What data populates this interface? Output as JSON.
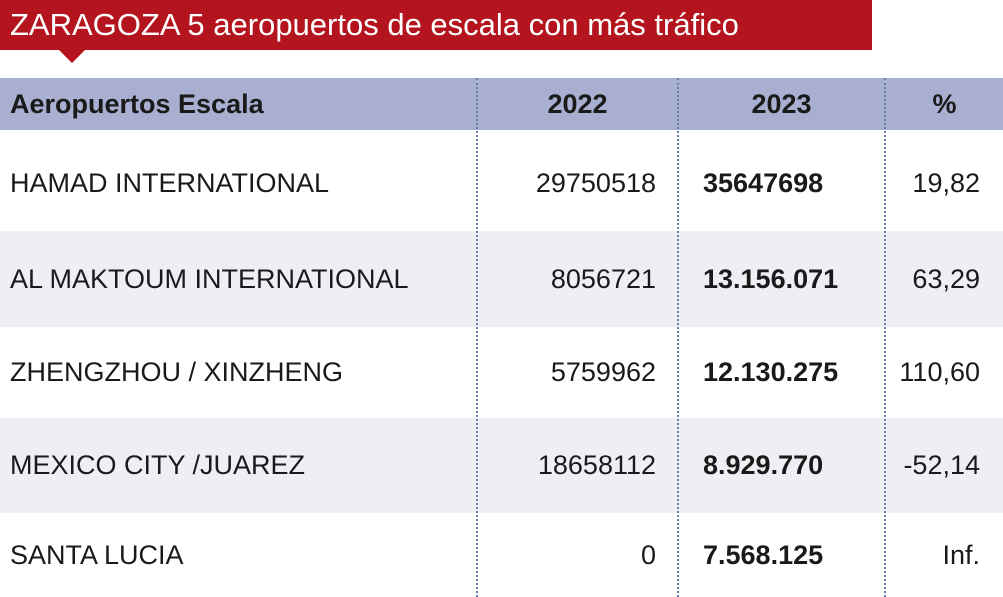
{
  "header": {
    "title": "ZARAGOZA 5 aeropuertos de escala con más tráfico"
  },
  "table": {
    "columns": [
      "Aeropuertos Escala",
      "2022",
      "2023",
      "%"
    ],
    "rows": [
      [
        "HAMAD INTERNATIONAL",
        "29750518",
        "35647698",
        "19,82"
      ],
      [
        "AL MAKTOUM INTERNATIONAL",
        "8056721",
        "13.156.071",
        "63,29"
      ],
      [
        "ZHENGZHOU / XINZHENG",
        "5759962",
        "12.130.275",
        "110,60"
      ],
      [
        "MEXICO CITY /JUAREZ",
        "18658112",
        "8.929.770",
        "-52,14"
      ],
      [
        "SANTA LUCIA",
        "0",
        "7.568.125",
        "Inf."
      ]
    ]
  }
}
